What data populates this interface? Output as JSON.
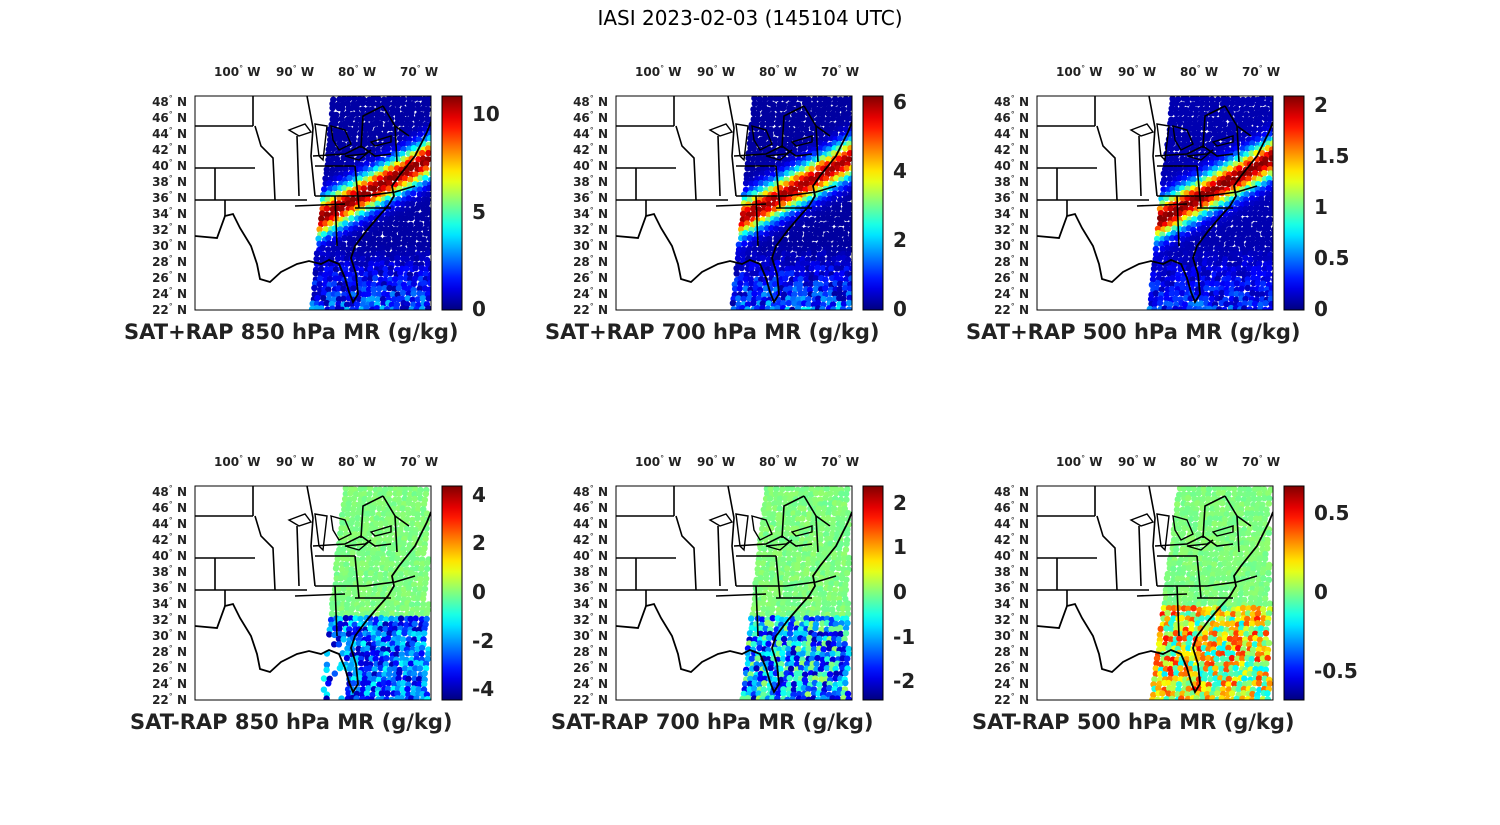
{
  "title": "IASI 2023-02-03 (145104 UTC)",
  "lon_ticks": [
    "100",
    "90",
    "80",
    "70"
  ],
  "lon_hemisphere": "W",
  "lat_ticks": [
    "48",
    "46",
    "44",
    "42",
    "40",
    "38",
    "36",
    "34",
    "32",
    "30",
    "28",
    "26",
    "24",
    "22"
  ],
  "lat_hemisphere": "N",
  "colormap": "jet",
  "panels": [
    {
      "title": "SAT+RAP 850 hPa MR (g/kg)",
      "clim": [
        0,
        11
      ],
      "colorbar_ticks": [
        "10",
        "5",
        "0"
      ],
      "colorbar_tick_values": [
        10,
        5,
        0
      ]
    },
    {
      "title": "SAT+RAP 700 hPa MR (g/kg)",
      "clim": [
        0,
        6.2
      ],
      "colorbar_ticks": [
        "6",
        "4",
        "2",
        "0"
      ],
      "colorbar_tick_values": [
        6,
        4,
        2,
        0
      ]
    },
    {
      "title": "SAT+RAP 500 hPa MR (g/kg)",
      "clim": [
        0,
        2.1
      ],
      "colorbar_ticks": [
        "2",
        "1.5",
        "1",
        "0.5",
        "0"
      ],
      "colorbar_tick_values": [
        2,
        1.5,
        1,
        0.5,
        0
      ]
    },
    {
      "title": "SAT-RAP 850 hPa MR (g/kg)",
      "clim": [
        -4.4,
        4.4
      ],
      "colorbar_ticks": [
        "4",
        "2",
        "0",
        "-2",
        "-4"
      ],
      "colorbar_tick_values": [
        4,
        2,
        0,
        -2,
        -4
      ]
    },
    {
      "title": "SAT-RAP 700 hPa MR (g/kg)",
      "clim": [
        -2.4,
        2.4
      ],
      "colorbar_ticks": [
        "2",
        "1",
        "0",
        "-1",
        "-2"
      ],
      "colorbar_tick_values": [
        2,
        1,
        0,
        -1,
        -2
      ]
    },
    {
      "title": "SAT-RAP 500 hPa MR (g/kg)",
      "clim": [
        -0.68,
        0.68
      ],
      "colorbar_ticks": [
        "0.5",
        "0",
        "-0.5"
      ],
      "colorbar_tick_values": [
        0.5,
        0,
        -0.5
      ]
    }
  ]
}
